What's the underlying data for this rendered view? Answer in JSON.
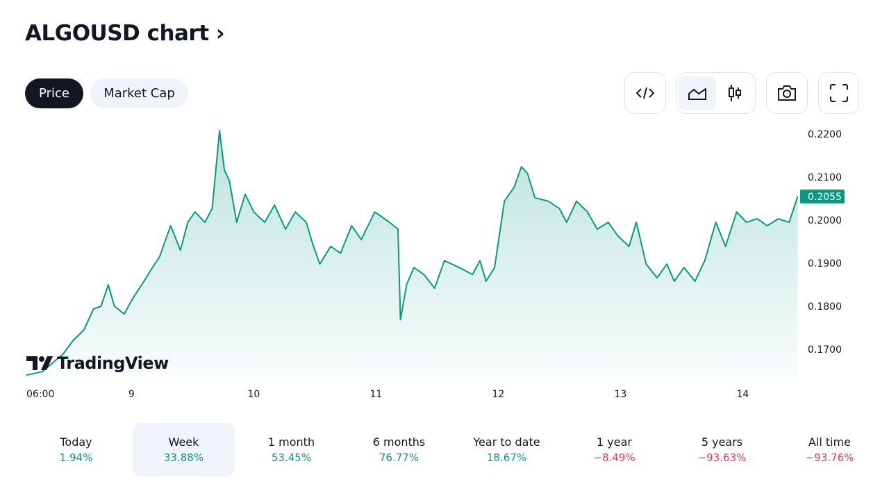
{
  "header": {
    "title": "ALGOUSD chart",
    "chevron": "›"
  },
  "tabs": [
    {
      "label": "Price",
      "active": true
    },
    {
      "label": "Market Cap",
      "active": false
    }
  ],
  "toolbar": {
    "icons": [
      "embed-code-icon",
      "area-chart-icon",
      "candlestick-icon",
      "camera-icon",
      "fullscreen-icon"
    ]
  },
  "logo": "TradingView",
  "colors": {
    "line": "#089981",
    "up": "#089981",
    "down": "#f23645",
    "active_bg": "#f0f3fa"
  },
  "chart_data": {
    "type": "area",
    "xlabel": "",
    "ylabel": "",
    "x_ticks": [
      {
        "v": 8.14,
        "label": "06:00"
      },
      {
        "v": 9,
        "label": "9"
      },
      {
        "v": 10,
        "label": "10"
      },
      {
        "v": 11,
        "label": "11"
      },
      {
        "v": 12,
        "label": "12"
      },
      {
        "v": 13,
        "label": "13"
      },
      {
        "v": 14,
        "label": "14"
      }
    ],
    "y_ticks": [
      {
        "v": 0.22,
        "label": "0.2200"
      },
      {
        "v": 0.21,
        "label": "0.2100"
      },
      {
        "v": 0.2,
        "label": "0.2000"
      },
      {
        "v": 0.19,
        "label": "0.1900"
      },
      {
        "v": 0.18,
        "label": "0.1800"
      },
      {
        "v": 0.17,
        "label": "0.1700"
      }
    ],
    "ylim": [
      0.165,
      0.222
    ],
    "last_price": {
      "v": 0.2055,
      "label": "0.2055"
    },
    "x": [
      8.14,
      8.27,
      8.44,
      8.52,
      8.61,
      8.69,
      8.75,
      8.81,
      8.86,
      8.94,
      9.01,
      9.12,
      9.16,
      9.23,
      9.32,
      9.4,
      9.46,
      9.52,
      9.6,
      9.66,
      9.72,
      9.76,
      9.8,
      9.86,
      9.93,
      10.0,
      10.09,
      10.17,
      10.26,
      10.34,
      10.43,
      10.48,
      10.54,
      10.63,
      10.71,
      10.8,
      10.88,
      10.99,
      11.11,
      11.18,
      11.2,
      11.25,
      11.31,
      11.39,
      11.48,
      11.56,
      11.68,
      11.79,
      11.85,
      11.9,
      11.97,
      12.05,
      12.13,
      12.19,
      12.24,
      12.3,
      12.41,
      12.5,
      12.56,
      12.64,
      12.73,
      12.81,
      12.9,
      12.98,
      13.07,
      13.13,
      13.21,
      13.3,
      13.38,
      13.44,
      13.52,
      13.61,
      13.69,
      13.78,
      13.86,
      13.95,
      14.03,
      14.12,
      14.2,
      14.29,
      14.38,
      14.45
    ],
    "y": [
      0.164,
      0.1648,
      0.1689,
      0.172,
      0.1745,
      0.1794,
      0.18,
      0.185,
      0.18,
      0.1782,
      0.1818,
      0.1866,
      0.1885,
      0.1915,
      0.1987,
      0.193,
      0.1995,
      0.2019,
      0.1995,
      0.2027,
      0.2208,
      0.2116,
      0.2092,
      0.1995,
      0.206,
      0.2019,
      0.1995,
      0.2035,
      0.1979,
      0.2019,
      0.1995,
      0.1947,
      0.1898,
      0.1939,
      0.1923,
      0.1987,
      0.1955,
      0.2019,
      0.1995,
      0.1979,
      0.1769,
      0.185,
      0.189,
      0.1874,
      0.1842,
      0.1906,
      0.189,
      0.1874,
      0.1906,
      0.1858,
      0.189,
      0.2044,
      0.2076,
      0.2124,
      0.2108,
      0.2052,
      0.2044,
      0.2027,
      0.1995,
      0.2044,
      0.2019,
      0.1979,
      0.1995,
      0.1963,
      0.1939,
      0.1995,
      0.1898,
      0.1866,
      0.1898,
      0.1858,
      0.189,
      0.1858,
      0.1906,
      0.1995,
      0.1939,
      0.2019,
      0.1995,
      0.2003,
      0.1987,
      0.2003,
      0.1995,
      0.2055
    ]
  },
  "periods": [
    {
      "label": "Today",
      "value": "1.94%",
      "dir": "up"
    },
    {
      "label": "Week",
      "value": "33.88%",
      "dir": "up",
      "active": true
    },
    {
      "label": "1 month",
      "value": "53.45%",
      "dir": "up"
    },
    {
      "label": "6 months",
      "value": "76.77%",
      "dir": "up"
    },
    {
      "label": "Year to date",
      "value": "18.67%",
      "dir": "up"
    },
    {
      "label": "1 year",
      "value": "−8.49%",
      "dir": "down"
    },
    {
      "label": "5 years",
      "value": "−93.63%",
      "dir": "down"
    },
    {
      "label": "All time",
      "value": "−93.76%",
      "dir": "down"
    }
  ]
}
